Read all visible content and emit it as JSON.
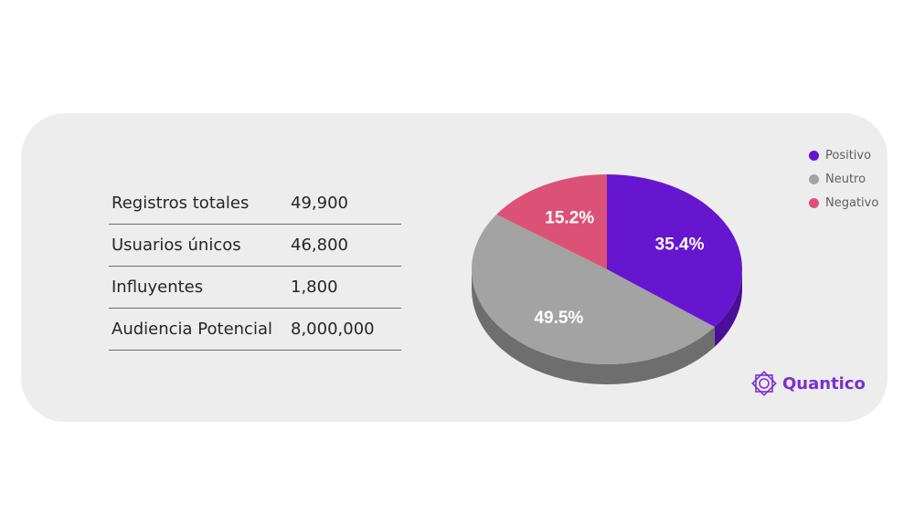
{
  "stats": [
    {
      "label": "Registros totales",
      "value": "49,900"
    },
    {
      "label": "Usuarios únicos",
      "value": "46,800"
    },
    {
      "label": "Influyentes",
      "value": "1,800"
    },
    {
      "label": "Audiencia Potencial",
      "value": "8,000,000"
    }
  ],
  "chart_data": {
    "type": "pie",
    "categories": [
      "Positivo",
      "Neutro",
      "Negativo"
    ],
    "values": [
      35.4,
      49.5,
      15.2
    ],
    "labels": [
      "35.4%",
      "49.5%",
      "15.2%"
    ],
    "colors": [
      "#6616cf",
      "#a3a3a3",
      "#dc5177"
    ],
    "side_colors": [
      "#4a0f98",
      "#6e6e6e",
      "#a83a5a"
    ],
    "legend_position": "top-right",
    "three_d": true
  },
  "logo": {
    "text": "Quantico",
    "color": "#7a2fd0"
  }
}
